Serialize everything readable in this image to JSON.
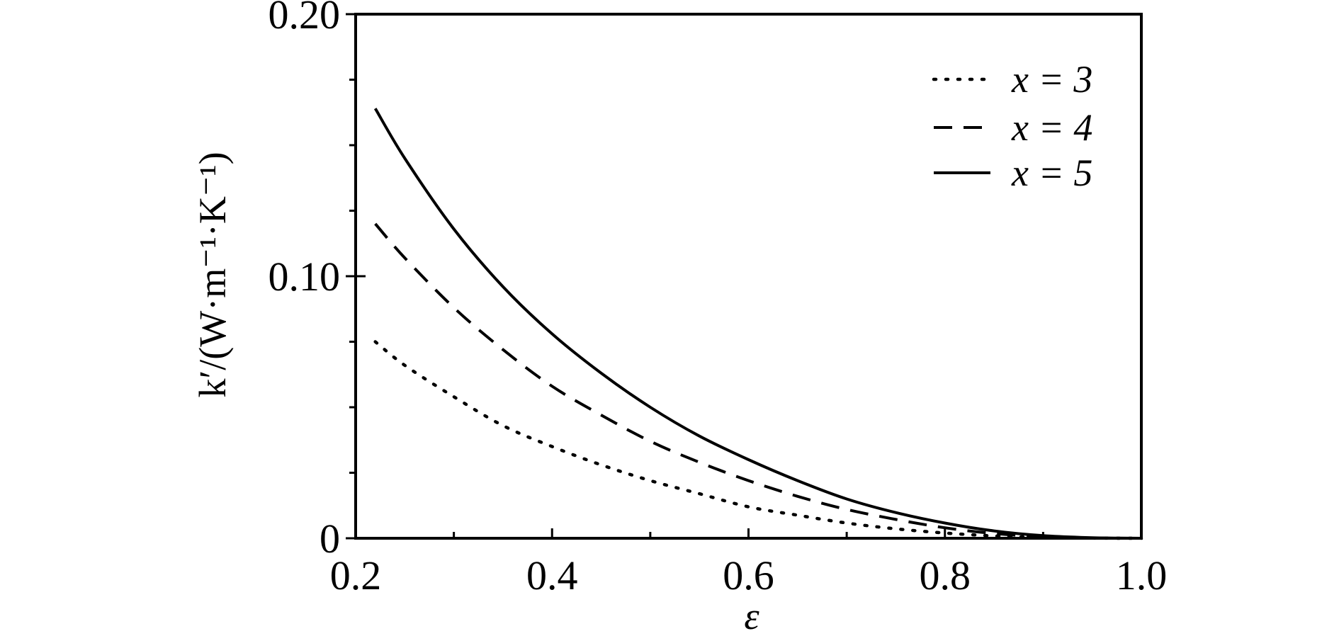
{
  "chart_data": {
    "type": "line",
    "xlabel": "ε",
    "ylabel": "k′/(W·m⁻¹·K⁻¹)",
    "xlim": [
      0.2,
      1.0
    ],
    "ylim": [
      0,
      0.2
    ],
    "xticks": [
      0.2,
      0.4,
      0.6,
      0.8,
      1.0
    ],
    "xtick_labels": [
      "0.2",
      "0.4",
      "0.6",
      "0.8",
      "1.0"
    ],
    "xminor": [
      0.3,
      0.5,
      0.7,
      0.9
    ],
    "yticks": [
      0,
      0.1,
      0.2
    ],
    "ytick_labels": [
      "0",
      "0.10",
      "0.20"
    ],
    "yminor": [
      0.025,
      0.05,
      0.075,
      0.125,
      0.15,
      0.175
    ],
    "grid": false,
    "legend_position": "top-right",
    "series": [
      {
        "name": "x = 3",
        "style": "dotted",
        "x": [
          0.22,
          0.25,
          0.3,
          0.35,
          0.4,
          0.45,
          0.5,
          0.55,
          0.6,
          0.65,
          0.7,
          0.75,
          0.8,
          0.85,
          0.9,
          0.95,
          1.0
        ],
        "y": [
          0.075,
          0.066,
          0.054,
          0.043,
          0.035,
          0.028,
          0.022,
          0.017,
          0.012,
          0.0088,
          0.0058,
          0.0036,
          0.002,
          0.0009,
          0.0003,
          5e-05,
          0
        ]
      },
      {
        "name": "x = 4",
        "style": "dashed",
        "x": [
          0.22,
          0.25,
          0.3,
          0.35,
          0.4,
          0.45,
          0.5,
          0.55,
          0.6,
          0.65,
          0.7,
          0.75,
          0.8,
          0.85,
          0.9,
          0.95,
          1.0
        ],
        "y": [
          0.12,
          0.107,
          0.088,
          0.072,
          0.058,
          0.047,
          0.037,
          0.029,
          0.022,
          0.016,
          0.011,
          0.0072,
          0.004,
          0.0018,
          0.0006,
          0.0001,
          0
        ]
      },
      {
        "name": "x = 5",
        "style": "solid",
        "x": [
          0.22,
          0.25,
          0.3,
          0.35,
          0.4,
          0.45,
          0.5,
          0.55,
          0.6,
          0.65,
          0.7,
          0.75,
          0.8,
          0.85,
          0.9,
          0.95,
          1.0
        ],
        "y": [
          0.164,
          0.145,
          0.118,
          0.096,
          0.078,
          0.063,
          0.05,
          0.039,
          0.03,
          0.022,
          0.015,
          0.0098,
          0.0058,
          0.0028,
          0.001,
          0.0002,
          0
        ]
      }
    ]
  }
}
